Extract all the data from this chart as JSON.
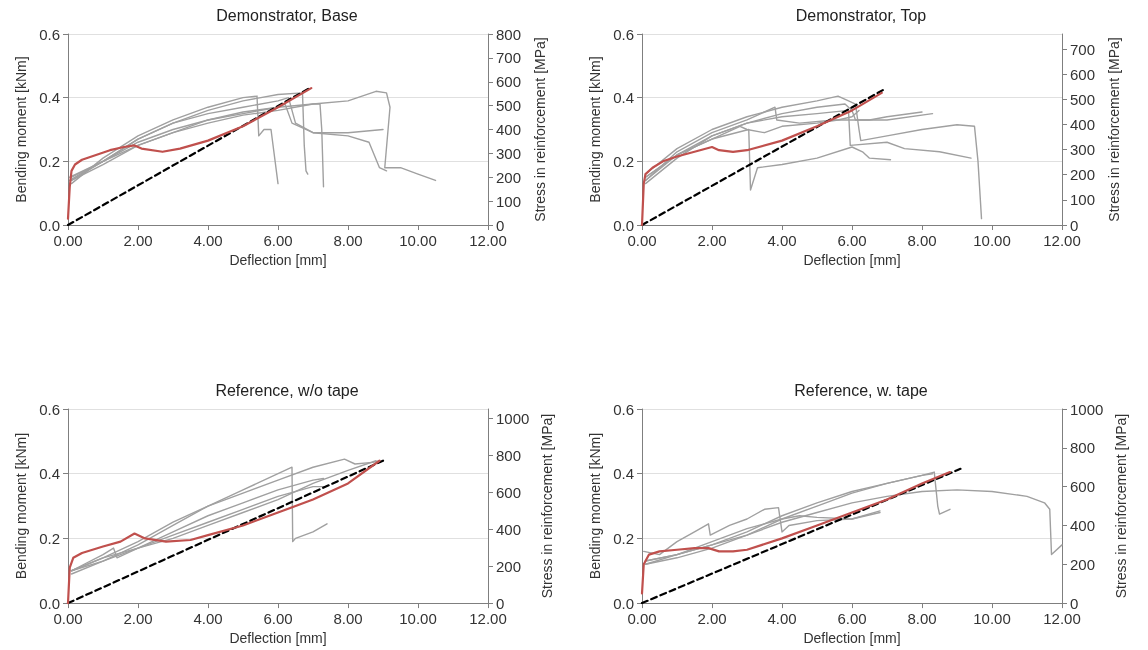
{
  "chart_data": [
    {
      "type": "line",
      "title": "Demonstrator, Base",
      "xlabel": "Deflection [mm]",
      "ylabel": "Bending moment [kNm]",
      "y2label": "Stress in reinforcement [MPa]",
      "xlim": [
        0,
        12
      ],
      "xticks": [
        {
          "value": 0,
          "label": "0.00"
        },
        {
          "value": 2,
          "label": "2.00"
        },
        {
          "value": 4,
          "label": "4.00"
        },
        {
          "value": 6,
          "label": "6.00"
        },
        {
          "value": 8,
          "label": "8.00"
        },
        {
          "value": 10,
          "label": "10.00"
        },
        {
          "value": 12,
          "label": "12.00"
        }
      ],
      "ylim": [
        0,
        0.6
      ],
      "yticks": [
        {
          "value": 0,
          "label": "0.0"
        },
        {
          "value": 0.2,
          "label": "0.2"
        },
        {
          "value": 0.4,
          "label": "0.4"
        },
        {
          "value": 0.6,
          "label": "0.6"
        }
      ],
      "y2lim": [
        0,
        800
      ],
      "y2ticks": [
        0,
        100,
        200,
        300,
        400,
        500,
        600,
        700,
        800
      ],
      "grid": "y",
      "marker": "none",
      "line_style": "solid",
      "series": [
        {
          "color": "#a0a0a0",
          "x": [
            0.05,
            0.5,
            1,
            2,
            3,
            4,
            5,
            6,
            7,
            8,
            8.8,
            9.1,
            9.2,
            9.05,
            9.5,
            10,
            10.5
          ],
          "values": [
            0.14,
            0.17,
            0.2,
            0.25,
            0.29,
            0.32,
            0.345,
            0.36,
            0.38,
            0.39,
            0.42,
            0.415,
            0.37,
            0.18,
            0.18,
            0.16,
            0.14
          ]
        },
        {
          "color": "#a0a0a0",
          "x": [
            0.05,
            1,
            2,
            3,
            4,
            5,
            6,
            6.7,
            6.75,
            6.8,
            6.85
          ],
          "values": [
            0.15,
            0.2,
            0.27,
            0.32,
            0.36,
            0.39,
            0.41,
            0.415,
            0.25,
            0.17,
            0.16
          ]
        },
        {
          "color": "#a0a0a0",
          "x": [
            0.1,
            1,
            2,
            3,
            4,
            5,
            5.4,
            5.45,
            5.6,
            5.8,
            6
          ],
          "values": [
            0.13,
            0.21,
            0.28,
            0.33,
            0.37,
            0.4,
            0.405,
            0.28,
            0.3,
            0.3,
            0.13
          ]
        },
        {
          "color": "#a0a0a0",
          "x": [
            0.1,
            1,
            2,
            3,
            4,
            5,
            6,
            7,
            7.2,
            7.25,
            7.3
          ],
          "values": [
            0.15,
            0.2,
            0.26,
            0.3,
            0.33,
            0.355,
            0.37,
            0.38,
            0.38,
            0.3,
            0.12
          ]
        },
        {
          "color": "#a0a0a0",
          "x": [
            0.1,
            1,
            2,
            3,
            4,
            5,
            6,
            6.2,
            6.4,
            7,
            8,
            8.6,
            8.9,
            9.1
          ],
          "values": [
            0.14,
            0.19,
            0.25,
            0.29,
            0.33,
            0.35,
            0.37,
            0.38,
            0.32,
            0.29,
            0.28,
            0.26,
            0.18,
            0.17
          ]
        },
        {
          "color": "#a0a0a0",
          "x": [
            0.1,
            1,
            2,
            3,
            4,
            5,
            6,
            6.3,
            6.5,
            7,
            8,
            9
          ],
          "values": [
            0.14,
            0.2,
            0.27,
            0.32,
            0.35,
            0.37,
            0.39,
            0.4,
            0.32,
            0.29,
            0.29,
            0.3
          ]
        },
        {
          "color": "#000000",
          "line_style": "dashed",
          "x": [
            0,
            6.9
          ],
          "values": [
            0,
            0.43
          ]
        },
        {
          "color": "#c0504d",
          "x": [
            0,
            0.05,
            0.1,
            0.2,
            0.4,
            0.8,
            1.2,
            1.6,
            1.9,
            2.1,
            2.7,
            3.2,
            4,
            5,
            6,
            6.95
          ],
          "values": [
            0.02,
            0.12,
            0.17,
            0.19,
            0.205,
            0.22,
            0.235,
            0.245,
            0.25,
            0.24,
            0.23,
            0.24,
            0.265,
            0.31,
            0.37,
            0.43
          ]
        }
      ]
    },
    {
      "type": "line",
      "title": "Demonstrator, Top",
      "xlabel": "Deflection [mm]",
      "ylabel": "Bending moment [kNm]",
      "y2label": "Stress in reinforcement [MPa]",
      "xlim": [
        0,
        12
      ],
      "xticks": [
        {
          "value": 0,
          "label": "0.00"
        },
        {
          "value": 2,
          "label": "2.00"
        },
        {
          "value": 4,
          "label": "4.00"
        },
        {
          "value": 6,
          "label": "6.00"
        },
        {
          "value": 8,
          "label": "8.00"
        },
        {
          "value": 10,
          "label": "10.00"
        },
        {
          "value": 12,
          "label": "12.00"
        }
      ],
      "ylim": [
        0,
        0.6
      ],
      "yticks": [
        {
          "value": 0,
          "label": "0.0"
        },
        {
          "value": 0.2,
          "label": "0.2"
        },
        {
          "value": 0.4,
          "label": "0.4"
        },
        {
          "value": 0.6,
          "label": "0.6"
        }
      ],
      "y2lim": [
        0,
        760
      ],
      "y2ticks": [
        0,
        100,
        200,
        300,
        400,
        500,
        600,
        700
      ],
      "grid": "y",
      "marker": "none",
      "line_style": "solid",
      "series": [
        {
          "color": "#a0a0a0",
          "x": [
            0.1,
            1,
            2,
            3.05,
            3.1,
            3.3,
            4,
            5,
            6,
            6.3,
            6.5,
            7.1
          ],
          "values": [
            0.14,
            0.22,
            0.27,
            0.3,
            0.11,
            0.18,
            0.19,
            0.21,
            0.245,
            0.23,
            0.21,
            0.205
          ]
        },
        {
          "color": "#a0a0a0",
          "x": [
            0.1,
            1,
            2,
            3,
            4,
            5,
            5.9,
            5.95,
            7,
            7.5,
            8.5,
            9.4
          ],
          "values": [
            0.15,
            0.22,
            0.28,
            0.32,
            0.34,
            0.35,
            0.36,
            0.25,
            0.26,
            0.24,
            0.23,
            0.21
          ]
        },
        {
          "color": "#a0a0a0",
          "x": [
            0.1,
            1,
            2,
            3,
            3.8,
            3.85,
            4.5,
            5.5,
            6.5,
            7,
            8
          ],
          "values": [
            0.14,
            0.23,
            0.29,
            0.33,
            0.37,
            0.33,
            0.32,
            0.33,
            0.33,
            0.34,
            0.355
          ]
        },
        {
          "color": "#a0a0a0",
          "x": [
            0.1,
            1,
            2,
            3,
            4,
            5,
            5.6,
            5.9,
            6.1,
            6.2,
            6.25,
            7,
            8,
            9,
            9.5,
            9.6,
            9.7
          ],
          "values": [
            0.16,
            0.24,
            0.3,
            0.34,
            0.37,
            0.39,
            0.405,
            0.39,
            0.38,
            0.3,
            0.265,
            0.28,
            0.3,
            0.315,
            0.31,
            0.2,
            0.02
          ]
        },
        {
          "color": "#a0a0a0",
          "x": [
            0.1,
            1,
            2,
            3,
            4,
            5,
            5.8,
            6,
            6.1,
            7,
            8.3
          ],
          "values": [
            0.13,
            0.21,
            0.28,
            0.32,
            0.35,
            0.37,
            0.38,
            0.36,
            0.33,
            0.33,
            0.35
          ]
        },
        {
          "color": "#a0a0a0",
          "x": [
            0.1,
            1,
            2,
            2.8,
            3,
            3.5,
            4,
            5,
            5.6,
            6,
            6.2
          ],
          "values": [
            0.15,
            0.22,
            0.27,
            0.31,
            0.3,
            0.29,
            0.31,
            0.32,
            0.33,
            0.34,
            0.36
          ]
        },
        {
          "color": "#000000",
          "line_style": "dashed",
          "x": [
            0,
            6.9
          ],
          "values": [
            0,
            0.425
          ]
        },
        {
          "color": "#c0504d",
          "x": [
            0,
            0.05,
            0.1,
            0.3,
            0.6,
            1,
            1.5,
            2,
            2.2,
            2.6,
            3,
            4,
            5,
            6,
            6.85
          ],
          "values": [
            0,
            0.13,
            0.16,
            0.18,
            0.2,
            0.215,
            0.23,
            0.245,
            0.235,
            0.23,
            0.235,
            0.265,
            0.31,
            0.36,
            0.415
          ]
        }
      ]
    },
    {
      "type": "line",
      "title": "Reference, w/o tape",
      "xlabel": "Deflection [mm]",
      "ylabel": "Bending moment [kNm]",
      "y2label": "Stress in reinforcement [MPa]",
      "xlim": [
        0,
        12
      ],
      "xticks": [
        {
          "value": 0,
          "label": "0.00"
        },
        {
          "value": 2,
          "label": "2.00"
        },
        {
          "value": 4,
          "label": "4.00"
        },
        {
          "value": 6,
          "label": "6.00"
        },
        {
          "value": 8,
          "label": "8.00"
        },
        {
          "value": 10,
          "label": "10.00"
        },
        {
          "value": 12,
          "label": "12.00"
        }
      ],
      "ylim": [
        0,
        0.6
      ],
      "yticks": [
        {
          "value": 0,
          "label": "0.0"
        },
        {
          "value": 0.2,
          "label": "0.2"
        },
        {
          "value": 0.4,
          "label": "0.4"
        },
        {
          "value": 0.6,
          "label": "0.6"
        }
      ],
      "y2lim": [
        0,
        1050
      ],
      "y2ticks": [
        0,
        200,
        400,
        600,
        800,
        1000
      ],
      "grid": "y",
      "marker": "none",
      "line_style": "solid",
      "series": [
        {
          "color": "#a0a0a0",
          "x": [
            0.1,
            1,
            2,
            3,
            4,
            5,
            6,
            6.4,
            6.42,
            6.5,
            7,
            7.4
          ],
          "values": [
            0.1,
            0.13,
            0.18,
            0.24,
            0.3,
            0.35,
            0.4,
            0.42,
            0.19,
            0.2,
            0.22,
            0.245
          ]
        },
        {
          "color": "#a0a0a0",
          "x": [
            0.1,
            1,
            2,
            3,
            4,
            5,
            6,
            7,
            7.9,
            8.2,
            8.7,
            8.9
          ],
          "values": [
            0.1,
            0.14,
            0.19,
            0.25,
            0.3,
            0.34,
            0.38,
            0.42,
            0.445,
            0.43,
            0.435,
            0.44
          ]
        },
        {
          "color": "#a0a0a0",
          "x": [
            0.1,
            1,
            2,
            3,
            4,
            5,
            6,
            7,
            7.3
          ],
          "values": [
            0.1,
            0.14,
            0.17,
            0.22,
            0.27,
            0.31,
            0.35,
            0.38,
            0.385
          ]
        },
        {
          "color": "#a0a0a0",
          "x": [
            0.1,
            1,
            2,
            3,
            4,
            5,
            6,
            7,
            7.3
          ],
          "values": [
            0.09,
            0.13,
            0.17,
            0.21,
            0.25,
            0.29,
            0.33,
            0.36,
            0.36
          ]
        },
        {
          "color": "#a0a0a0",
          "x": [
            0.1,
            1,
            1.3,
            1.4,
            2,
            3,
            4,
            5,
            6,
            7,
            8,
            8.8
          ],
          "values": [
            0.1,
            0.15,
            0.17,
            0.14,
            0.17,
            0.2,
            0.24,
            0.28,
            0.32,
            0.37,
            0.41,
            0.44
          ]
        },
        {
          "color": "#000000",
          "line_style": "dashed",
          "x": [
            0,
            9
          ],
          "values": [
            0,
            0.44
          ]
        },
        {
          "color": "#c0504d",
          "x": [
            0,
            0.05,
            0.15,
            0.4,
            1,
            1.5,
            1.9,
            2.2,
            2.8,
            3.5,
            4,
            5,
            6,
            7,
            8,
            8.9
          ],
          "values": [
            0,
            0.11,
            0.14,
            0.155,
            0.175,
            0.19,
            0.215,
            0.2,
            0.19,
            0.195,
            0.21,
            0.24,
            0.28,
            0.32,
            0.37,
            0.44
          ]
        }
      ]
    },
    {
      "type": "line",
      "title": "Reference, w. tape",
      "xlabel": "Deflection [mm]",
      "ylabel": "Bending moment [kNm]",
      "y2label": "Stress in reinforcement [MPa]",
      "xlim": [
        0,
        12
      ],
      "xticks": [
        {
          "value": 0,
          "label": "0.00"
        },
        {
          "value": 2,
          "label": "2.00"
        },
        {
          "value": 4,
          "label": "4.00"
        },
        {
          "value": 6,
          "label": "6.00"
        },
        {
          "value": 8,
          "label": "8.00"
        },
        {
          "value": 10,
          "label": "10.00"
        },
        {
          "value": 12,
          "label": "12.00"
        }
      ],
      "ylim": [
        0,
        0.6
      ],
      "yticks": [
        {
          "value": 0,
          "label": "0.0"
        },
        {
          "value": 0.2,
          "label": "0.2"
        },
        {
          "value": 0.4,
          "label": "0.4"
        },
        {
          "value": 0.6,
          "label": "0.6"
        }
      ],
      "y2lim": [
        0,
        1000
      ],
      "y2ticks": [
        0,
        200,
        400,
        600,
        800,
        1000
      ],
      "grid": "y",
      "marker": "none",
      "line_style": "solid",
      "series": [
        {
          "color": "#a0a0a0",
          "x": [
            0.05,
            0.5,
            1,
            1.5,
            1.9,
            1.95,
            2.5,
            3,
            3.5,
            3.9,
            4,
            4.2,
            5,
            6,
            6.8
          ],
          "values": [
            0.16,
            0.15,
            0.19,
            0.22,
            0.245,
            0.21,
            0.24,
            0.26,
            0.29,
            0.295,
            0.22,
            0.24,
            0.255,
            0.26,
            0.285
          ]
        },
        {
          "color": "#a0a0a0",
          "x": [
            0.1,
            1,
            2,
            3,
            4,
            5,
            6,
            7,
            8,
            8.35,
            8.45,
            8.5,
            8.8
          ],
          "values": [
            0.13,
            0.15,
            0.18,
            0.22,
            0.27,
            0.31,
            0.345,
            0.37,
            0.395,
            0.405,
            0.3,
            0.275,
            0.29
          ]
        },
        {
          "color": "#a0a0a0",
          "x": [
            0.1,
            1,
            2,
            3,
            4,
            4.5,
            5,
            6,
            6.8
          ],
          "values": [
            0.12,
            0.15,
            0.19,
            0.23,
            0.26,
            0.27,
            0.265,
            0.26,
            0.28
          ]
        },
        {
          "color": "#a0a0a0",
          "x": [
            0.1,
            1,
            2,
            3,
            4,
            5,
            6,
            7,
            8,
            9,
            10,
            11,
            11.5,
            11.65,
            11.7,
            12
          ],
          "values": [
            0.13,
            0.15,
            0.18,
            0.21,
            0.25,
            0.28,
            0.31,
            0.33,
            0.345,
            0.35,
            0.345,
            0.33,
            0.31,
            0.29,
            0.15,
            0.18
          ]
        },
        {
          "color": "#a0a0a0",
          "x": [
            0.1,
            1,
            2,
            3,
            4,
            5,
            6,
            7,
            8,
            8.3
          ],
          "values": [
            0.12,
            0.14,
            0.17,
            0.21,
            0.26,
            0.3,
            0.34,
            0.37,
            0.395,
            0.4
          ]
        },
        {
          "color": "#000000",
          "line_style": "dashed",
          "x": [
            0,
            9.1
          ],
          "values": [
            0,
            0.415
          ]
        },
        {
          "color": "#c0504d",
          "x": [
            0,
            0.05,
            0.2,
            0.5,
            1,
            1.5,
            1.9,
            2.2,
            2.6,
            3,
            4,
            5,
            6,
            7,
            8,
            8.8
          ],
          "values": [
            0.03,
            0.12,
            0.15,
            0.16,
            0.165,
            0.17,
            0.17,
            0.16,
            0.16,
            0.165,
            0.2,
            0.24,
            0.28,
            0.32,
            0.37,
            0.405
          ]
        }
      ]
    }
  ]
}
